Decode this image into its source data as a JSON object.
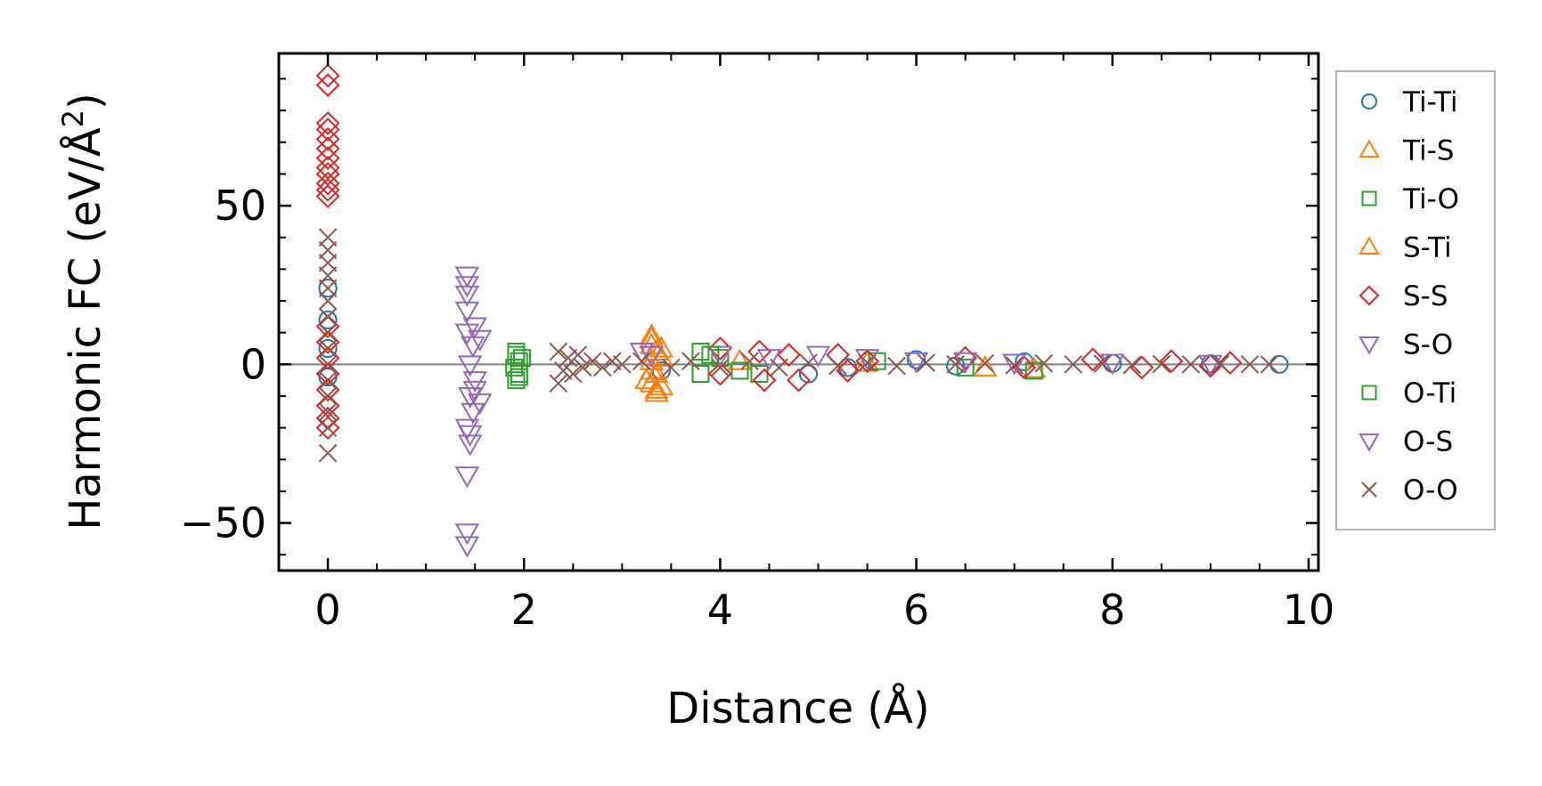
{
  "chart_data": {
    "type": "scatter",
    "title": "",
    "xlabel": "Distance (Å)",
    "ylabel": "Harmonic FC (eV/Å",
    "ylabel_superscript": "2",
    "ylabel_suffix": ")",
    "xlim": [
      -0.5,
      10.1
    ],
    "ylim": [
      -65,
      98
    ],
    "xticks": [
      0,
      2,
      4,
      6,
      8,
      10
    ],
    "xtick_labels": [
      "0",
      "2",
      "4",
      "6",
      "8",
      "10"
    ],
    "yticks": [
      -50,
      0,
      50
    ],
    "ytick_labels": [
      "−50",
      "0",
      "50"
    ],
    "x_minor_step": 0.5,
    "y_minor_step": 10,
    "zero_line": true,
    "grid": false,
    "legend_position": "outside-right",
    "series": [
      {
        "name": "Ti-Ti",
        "marker": "circle",
        "color": "#1f77b4",
        "points": [
          [
            0.0,
            24
          ],
          [
            0.0,
            14
          ],
          [
            0.0,
            5
          ],
          [
            0.0,
            -4
          ],
          [
            3.4,
            -2
          ],
          [
            4.9,
            -3
          ],
          [
            5.3,
            -1
          ],
          [
            6.0,
            1.5
          ],
          [
            6.4,
            -0.5
          ],
          [
            7.1,
            0.8
          ],
          [
            8.0,
            0.3
          ],
          [
            9.0,
            0.2
          ],
          [
            9.7,
            0
          ]
        ]
      },
      {
        "name": "Ti-S",
        "marker": "triangle-up",
        "color": "#ff7f0e",
        "points": [
          [
            3.3,
            9
          ],
          [
            3.3,
            6
          ],
          [
            3.35,
            4
          ],
          [
            3.3,
            1
          ],
          [
            3.35,
            -3
          ],
          [
            3.3,
            -6
          ],
          [
            3.35,
            -9
          ],
          [
            3.25,
            -5
          ],
          [
            3.4,
            2
          ],
          [
            3.4,
            -7
          ],
          [
            4.2,
            1
          ],
          [
            5.5,
            0.5
          ],
          [
            6.7,
            -1
          ],
          [
            7.2,
            -1.5
          ]
        ]
      },
      {
        "name": "Ti-O",
        "marker": "square",
        "color": "#2ca02c",
        "points": [
          [
            1.92,
            3
          ],
          [
            1.95,
            1
          ],
          [
            1.9,
            -1
          ],
          [
            1.95,
            -3
          ],
          [
            1.92,
            -5
          ],
          [
            1.98,
            2
          ],
          [
            3.8,
            4
          ],
          [
            4.0,
            2
          ],
          [
            4.4,
            -3
          ],
          [
            3.8,
            -3
          ],
          [
            5.6,
            1
          ],
          [
            6.5,
            -1
          ],
          [
            7.2,
            -2
          ]
        ]
      },
      {
        "name": "S-Ti",
        "marker": "triangle-up",
        "color": "#ff7f0e",
        "points": [
          [
            3.3,
            8
          ],
          [
            3.35,
            -8
          ],
          [
            3.3,
            -2
          ],
          [
            3.4,
            5
          ]
        ]
      },
      {
        "name": "S-S",
        "marker": "diamond",
        "color": "#d62728",
        "points": [
          [
            0.0,
            91
          ],
          [
            0.0,
            88
          ],
          [
            0.0,
            76
          ],
          [
            0.0,
            74
          ],
          [
            0.0,
            71
          ],
          [
            0.0,
            68
          ],
          [
            0.0,
            65
          ],
          [
            0.0,
            62
          ],
          [
            0.0,
            60
          ],
          [
            0.0,
            57
          ],
          [
            0.0,
            55
          ],
          [
            0.0,
            53
          ],
          [
            0.0,
            12
          ],
          [
            0.0,
            7
          ],
          [
            0.0,
            2
          ],
          [
            0.0,
            -3
          ],
          [
            0.0,
            -8
          ],
          [
            0.0,
            -13
          ],
          [
            0.0,
            -17
          ],
          [
            0.0,
            -20
          ],
          [
            4.0,
            5
          ],
          [
            4.0,
            -3
          ],
          [
            4.4,
            4
          ],
          [
            4.45,
            -5
          ],
          [
            4.7,
            3
          ],
          [
            4.8,
            -5
          ],
          [
            5.2,
            3
          ],
          [
            5.3,
            -2
          ],
          [
            5.5,
            1
          ],
          [
            6.5,
            2
          ],
          [
            7.1,
            -1
          ],
          [
            7.8,
            1.5
          ],
          [
            8.3,
            -1
          ],
          [
            8.6,
            1
          ],
          [
            9.0,
            -0.5
          ],
          [
            9.2,
            0.5
          ]
        ]
      },
      {
        "name": "S-O",
        "marker": "triangle-down",
        "color": "#9467bd",
        "points": [
          [
            1.42,
            28
          ],
          [
            1.42,
            25
          ],
          [
            1.42,
            22
          ],
          [
            1.42,
            17
          ],
          [
            1.42,
            10
          ],
          [
            1.48,
            6
          ],
          [
            1.45,
            0
          ],
          [
            1.5,
            -5
          ],
          [
            1.45,
            -10
          ],
          [
            1.48,
            -15
          ],
          [
            1.42,
            -20
          ],
          [
            1.45,
            -25
          ],
          [
            1.42,
            -35
          ],
          [
            1.42,
            -53
          ],
          [
            1.42,
            -57
          ],
          [
            1.55,
            8
          ],
          [
            1.55,
            -12
          ],
          [
            3.2,
            4
          ],
          [
            4.0,
            3
          ],
          [
            5.0,
            3
          ],
          [
            5.5,
            2
          ],
          [
            6.0,
            1
          ],
          [
            6.5,
            1
          ],
          [
            7.0,
            0.5
          ],
          [
            8.0,
            0.5
          ],
          [
            9.0,
            0.2
          ]
        ]
      },
      {
        "name": "O-Ti",
        "marker": "square",
        "color": "#2ca02c",
        "points": [
          [
            1.92,
            4
          ],
          [
            1.95,
            -4
          ],
          [
            3.9,
            3
          ],
          [
            4.2,
            -2
          ]
        ]
      },
      {
        "name": "O-S",
        "marker": "triangle-down",
        "color": "#9467bd",
        "points": [
          [
            1.45,
            -22
          ],
          [
            1.5,
            12
          ],
          [
            1.5,
            -8
          ],
          [
            3.3,
            3
          ],
          [
            4.5,
            2
          ]
        ]
      },
      {
        "name": "O-O",
        "marker": "x",
        "color": "#8c564b",
        "points": [
          [
            0.0,
            40
          ],
          [
            0.0,
            36
          ],
          [
            0.0,
            32
          ],
          [
            0.0,
            28
          ],
          [
            0.0,
            24
          ],
          [
            0.0,
            20
          ],
          [
            0.0,
            15
          ],
          [
            0.0,
            10
          ],
          [
            0.0,
            5
          ],
          [
            0.0,
            0
          ],
          [
            0.0,
            -5
          ],
          [
            0.0,
            -10
          ],
          [
            0.0,
            -15
          ],
          [
            0.0,
            -20
          ],
          [
            0.0,
            -28
          ],
          [
            2.35,
            4
          ],
          [
            2.4,
            -2
          ],
          [
            2.35,
            -6
          ],
          [
            2.45,
            2
          ],
          [
            2.5,
            -3
          ],
          [
            2.55,
            3
          ],
          [
            2.6,
            -1
          ],
          [
            2.7,
            1
          ],
          [
            2.8,
            -1
          ],
          [
            2.9,
            1
          ],
          [
            3.0,
            0
          ],
          [
            3.2,
            1
          ],
          [
            3.5,
            -1
          ],
          [
            3.7,
            1
          ],
          [
            4.0,
            -1
          ],
          [
            4.3,
            1
          ],
          [
            4.6,
            -1
          ],
          [
            4.9,
            0.5
          ],
          [
            5.2,
            -0.5
          ],
          [
            5.5,
            0.5
          ],
          [
            5.8,
            -0.5
          ],
          [
            6.1,
            0.5
          ],
          [
            6.4,
            0
          ],
          [
            6.7,
            0.3
          ],
          [
            7.0,
            -0.3
          ],
          [
            7.3,
            0.3
          ],
          [
            7.6,
            0
          ],
          [
            7.9,
            0.2
          ],
          [
            8.2,
            -0.2
          ],
          [
            8.5,
            0.1
          ],
          [
            8.8,
            0
          ],
          [
            9.1,
            0.1
          ],
          [
            9.4,
            0
          ],
          [
            9.6,
            0
          ]
        ]
      }
    ]
  }
}
